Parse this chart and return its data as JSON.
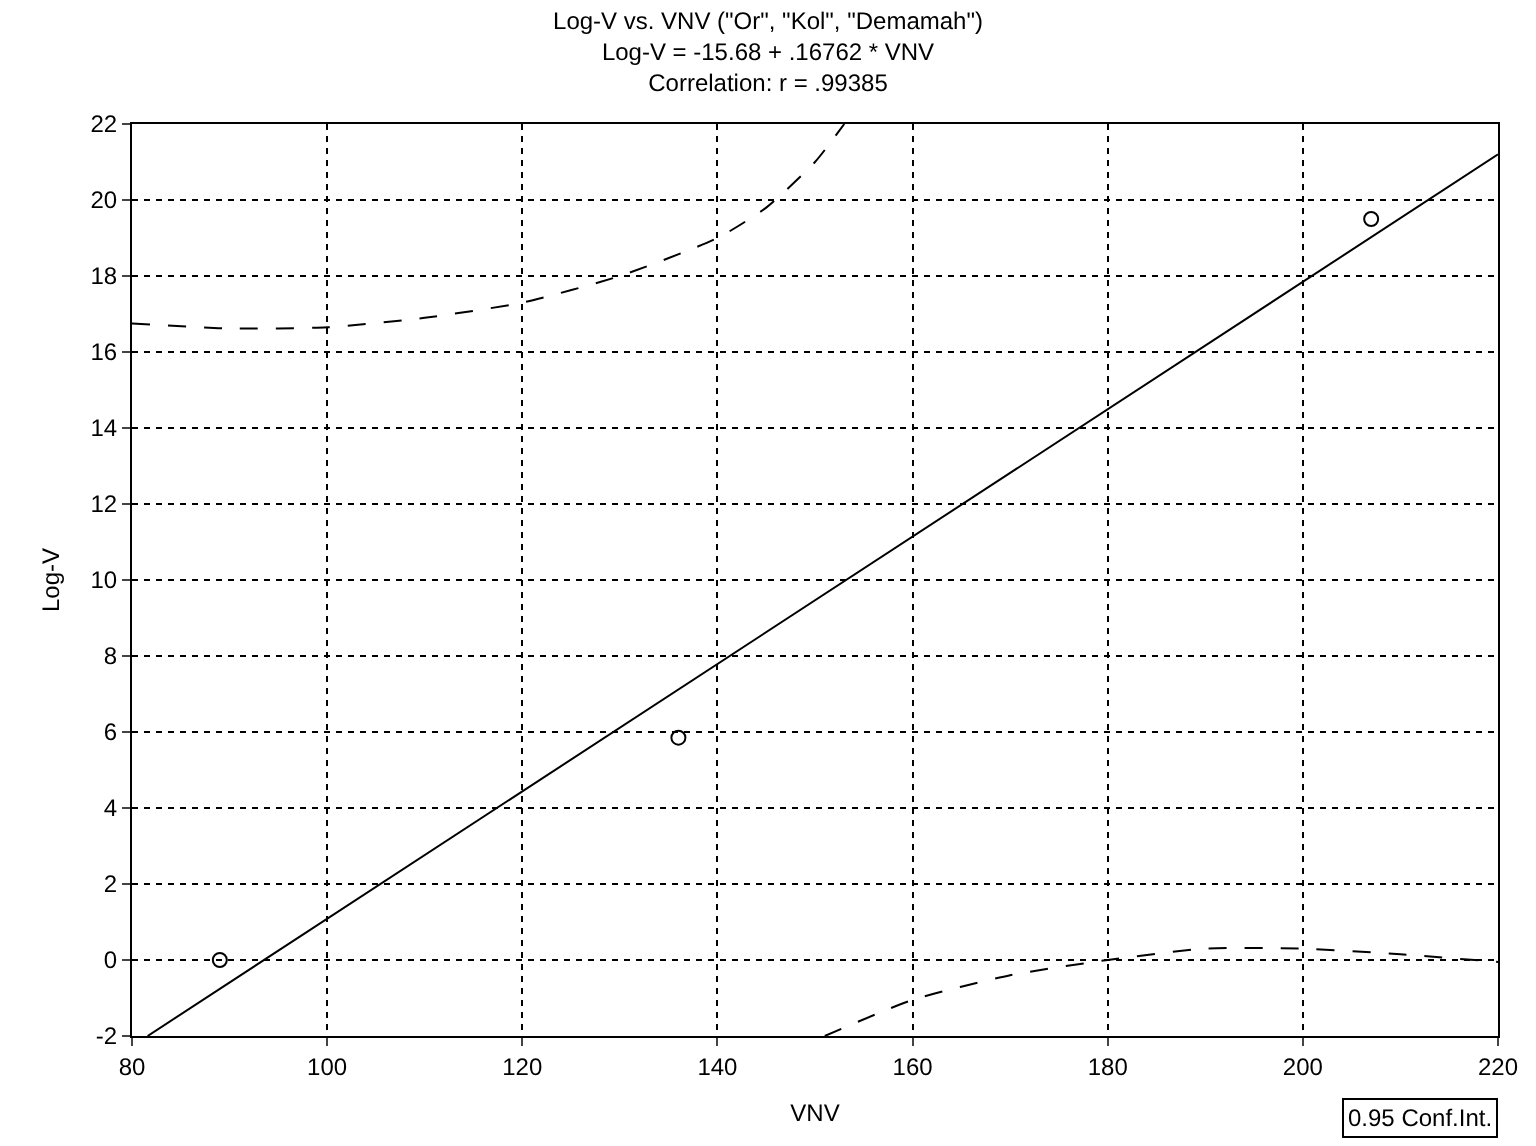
{
  "chart_data": {
    "type": "scatter",
    "title": "Log-V vs. VNV (\"Or\", \"Kol\", \"Demamah\")",
    "subtitle": "Log-V = -15.68 + .16762 * VNV\nCorrelation: r = .99385",
    "xlabel": "VNV",
    "ylabel": "Log-V",
    "xlim": [
      80,
      220
    ],
    "xticks": [
      80,
      100,
      120,
      140,
      160,
      180,
      200,
      220
    ],
    "ylim": [
      -2,
      22
    ],
    "yticks": [
      -2,
      0,
      2,
      4,
      6,
      8,
      10,
      12,
      14,
      16,
      18,
      20,
      22
    ],
    "grid": true,
    "annotations": [
      "0.95 Conf.Int."
    ],
    "series": [
      {
        "marker": "circle",
        "color": "#000000",
        "x": [
          89,
          136,
          207
        ],
        "values": [
          0,
          5.85,
          19.5
        ]
      },
      {
        "type": "line",
        "marker": "none",
        "line_style": "solid",
        "color": "#000000",
        "x": [
          81.6,
          220
        ],
        "values": [
          -2,
          21.2
        ]
      },
      {
        "type": "line",
        "marker": "none",
        "line_style": "dashed",
        "color": "#000000",
        "x": [
          80,
          90,
          100,
          110,
          120,
          130,
          140,
          145,
          150,
          153
        ],
        "values": [
          16.75,
          16.62,
          16.65,
          16.9,
          17.3,
          18.0,
          19.0,
          19.8,
          21.0,
          22
        ]
      },
      {
        "type": "line",
        "marker": "none",
        "line_style": "dashed",
        "color": "#000000",
        "x": [
          151,
          160,
          170,
          180,
          190,
          200,
          210,
          220
        ],
        "values": [
          -2,
          -1.05,
          -0.4,
          0.0,
          0.3,
          0.3,
          0.15,
          -0.05
        ]
      }
    ]
  }
}
